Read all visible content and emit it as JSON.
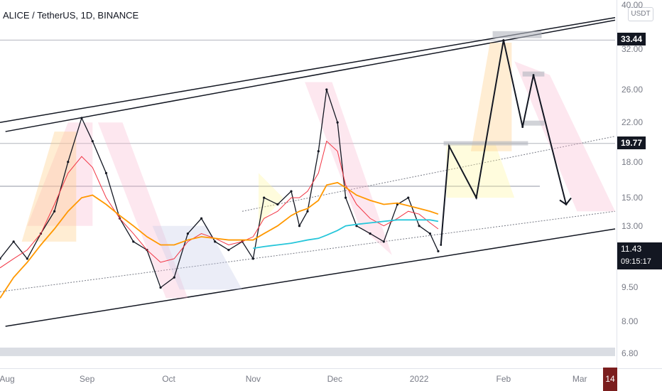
{
  "header": {
    "title": "ALICE / TetherUS, 1D, BINANCE"
  },
  "price_axis": {
    "unit": "USDT",
    "ticks": [
      "40.00",
      "32.00",
      "26.00",
      "22.00",
      "18.00",
      "15.00",
      "13.00",
      "9.50",
      "8.00",
      "6.80"
    ]
  },
  "time_axis": {
    "ticks": [
      "Aug",
      "Sep",
      "Oct",
      "Nov",
      "Dec",
      "2022",
      "Feb",
      "Mar"
    ],
    "current_day": "14"
  },
  "price_tags": {
    "level_high": "33.44",
    "level_mid": "19.77",
    "last_price": "11.43",
    "countdown": "09:15:17"
  },
  "colors": {
    "up": "#26a69a",
    "down": "#ef5350",
    "candle": "#131722",
    "ema_short": "#f23645",
    "ema_mid": "#ff9800",
    "ma_long": "#26c6da",
    "tag_bg": "#131722",
    "date_tag": "#7b1e1e"
  },
  "chart_data": {
    "type": "candlestick",
    "symbol": "ALICE / TetherUS",
    "interval": "1D",
    "exchange": "BINANCE",
    "y_scale": "log",
    "ylim": [
      6.5,
      40
    ],
    "x_range": [
      "2021-07-31",
      "2022-03-14"
    ],
    "price_series": [
      {
        "date": "2021-07-31",
        "close": 11.0
      },
      {
        "date": "2021-08-05",
        "close": 12.0
      },
      {
        "date": "2021-08-10",
        "close": 11.0
      },
      {
        "date": "2021-08-15",
        "close": 12.5
      },
      {
        "date": "2021-08-20",
        "close": 14.0
      },
      {
        "date": "2021-08-25",
        "close": 18.0
      },
      {
        "date": "2021-08-30",
        "close": 22.5
      },
      {
        "date": "2021-09-03",
        "close": 20.0
      },
      {
        "date": "2021-09-08",
        "close": 17.0
      },
      {
        "date": "2021-09-13",
        "close": 13.5
      },
      {
        "date": "2021-09-18",
        "close": 12.0
      },
      {
        "date": "2021-09-23",
        "close": 11.5
      },
      {
        "date": "2021-09-28",
        "close": 9.5
      },
      {
        "date": "2021-10-03",
        "close": 10.0
      },
      {
        "date": "2021-10-08",
        "close": 12.5
      },
      {
        "date": "2021-10-13",
        "close": 13.5
      },
      {
        "date": "2021-10-18",
        "close": 12.0
      },
      {
        "date": "2021-10-23",
        "close": 11.5
      },
      {
        "date": "2021-10-28",
        "close": 12.0
      },
      {
        "date": "2021-11-01",
        "close": 11.0
      },
      {
        "date": "2021-11-05",
        "close": 15.0
      },
      {
        "date": "2021-11-10",
        "close": 14.5
      },
      {
        "date": "2021-11-15",
        "close": 15.5
      },
      {
        "date": "2021-11-18",
        "close": 13.0
      },
      {
        "date": "2021-11-21",
        "close": 14.0
      },
      {
        "date": "2021-11-25",
        "close": 19.0
      },
      {
        "date": "2021-11-28",
        "close": 26.0
      },
      {
        "date": "2021-12-02",
        "close": 22.0
      },
      {
        "date": "2021-12-05",
        "close": 15.0
      },
      {
        "date": "2021-12-09",
        "close": 13.0
      },
      {
        "date": "2021-12-14",
        "close": 12.5
      },
      {
        "date": "2021-12-19",
        "close": 12.0
      },
      {
        "date": "2021-12-24",
        "close": 14.5
      },
      {
        "date": "2021-12-28",
        "close": 15.0
      },
      {
        "date": "2022-01-01",
        "close": 13.0
      },
      {
        "date": "2022-01-05",
        "close": 12.5
      },
      {
        "date": "2022-01-08",
        "close": 11.43
      }
    ],
    "indicators": [
      {
        "kind": "step_ma",
        "color": "#f23645",
        "values": [
          10.5,
          11.0,
          11.5,
          12.5,
          14.5,
          17.0,
          18.5,
          17.5,
          15.0,
          13.5,
          12.5,
          11.5,
          10.8,
          11.0,
          12.0,
          12.5,
          12.2,
          11.8,
          12.0,
          12.3,
          13.5,
          14.0,
          15.0,
          15.0,
          15.5,
          17.0,
          20.0,
          19.0,
          16.0,
          14.5,
          13.5,
          13.0,
          13.5,
          14.0,
          13.8,
          13.2,
          12.8
        ]
      },
      {
        "kind": "ema",
        "color": "#ff9800",
        "values": [
          9.0,
          10.0,
          10.8,
          11.8,
          12.8,
          14.0,
          15.0,
          15.2,
          14.5,
          13.7,
          13.0,
          12.3,
          11.8,
          11.8,
          12.1,
          12.3,
          12.2,
          12.1,
          12.1,
          12.1,
          12.5,
          13.0,
          13.7,
          14.0,
          14.2,
          14.8,
          16.0,
          16.2,
          15.8,
          15.2,
          14.8,
          14.5,
          14.6,
          14.4,
          14.2,
          14.0,
          13.8
        ]
      },
      {
        "kind": "ma",
        "color": "#26c6da",
        "start_index": 19,
        "values": [
          11.6,
          11.7,
          11.8,
          11.9,
          12.0,
          12.1,
          12.2,
          12.4,
          12.7,
          13.0,
          13.1,
          13.2,
          13.3,
          13.4,
          13.4,
          13.4,
          13.4,
          13.3
        ]
      }
    ],
    "levels": [
      33.44,
      19.77
    ],
    "projection": [
      {
        "date": "2022-01-09",
        "price": 11.8
      },
      {
        "date": "2022-01-12",
        "price": 19.5
      },
      {
        "date": "2022-01-22",
        "price": 15.0
      },
      {
        "date": "2022-02-01",
        "price": 33.44
      },
      {
        "date": "2022-02-08",
        "price": 21.5
      },
      {
        "date": "2022-02-12",
        "price": 28.0
      },
      {
        "date": "2022-02-24",
        "price": 14.5
      }
    ]
  }
}
